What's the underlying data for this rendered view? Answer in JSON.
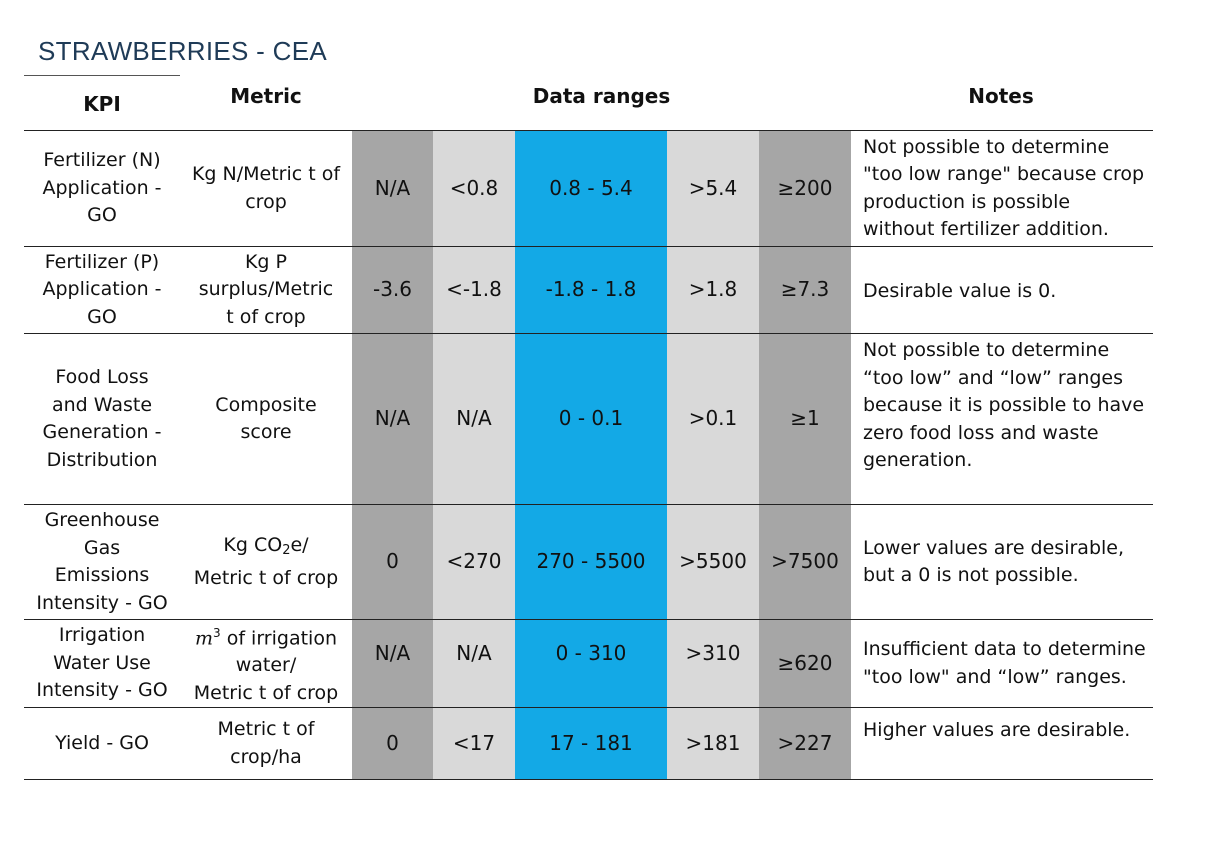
{
  "title": "STRAWBERRIES - CEA",
  "headers": {
    "kpi": "KPI",
    "metric": "Metric",
    "ranges": "Data ranges",
    "notes": "Notes"
  },
  "colors": {
    "title": "#1f3b57",
    "dark_gray": "#a6a6a6",
    "light_gray": "#d9d9d9",
    "blue": "#13a9e6"
  },
  "rows": [
    {
      "kpi": [
        "Fertilizer (N)",
        "Application -",
        "GO"
      ],
      "metric": [
        "Kg N/Metric t of",
        "crop"
      ],
      "ranges": [
        "N/A",
        "<0.8",
        "0.8 - 5.4",
        ">5.4",
        "≥200"
      ],
      "notes": [
        "Not possible to determine",
        "\"too low range\" because crop",
        "production is possible",
        "without fertilizer addition."
      ]
    },
    {
      "kpi": [
        "Fertilizer (P)",
        "Application -",
        "GO"
      ],
      "metric": [
        "Kg P",
        "surplus/Metric",
        "t of crop"
      ],
      "ranges": [
        "-3.6",
        "<-1.8",
        "-1.8 - 1.8",
        ">1.8",
        "≥7.3"
      ],
      "notes": [
        "Desirable value is 0."
      ]
    },
    {
      "kpi": [
        "Food Loss",
        "and Waste",
        "Generation -",
        "Distribution"
      ],
      "metric": [
        "Composite",
        "score"
      ],
      "ranges": [
        "N/A",
        "N/A",
        "0 - 0.1",
        ">0.1",
        "≥1"
      ],
      "notes": [
        "Not possible to determine",
        "“too low” and “low” ranges",
        "because it is possible to have",
        "zero food loss and waste",
        "generation."
      ]
    },
    {
      "kpi": [
        "Greenhouse",
        "Gas",
        "Emissions",
        "Intensity - GO"
      ],
      "metric_prefix": "Kg CO",
      "metric_sub": "2",
      "metric_suffix": "e/",
      "metric_line2": "Metric t of crop",
      "ranges": [
        "0",
        "<270",
        "270 - 5500",
        ">5500",
        ">7500"
      ],
      "notes": [
        "Lower values are desirable,",
        "but a 0 is not possible."
      ]
    },
    {
      "kpi": [
        "Irrigation",
        "Water Use",
        "Intensity - GO"
      ],
      "metric_math": "m",
      "metric_sup": "3",
      "metric_line1_rest": " of irrigation",
      "metric_line2": "water/",
      "metric_line3": "Metric t of crop",
      "ranges": [
        "N/A",
        "N/A",
        "0 - 310",
        ">310",
        "≥620"
      ],
      "notes": [
        "Insufficient data to determine",
        "\"too low\" and “low” ranges."
      ]
    },
    {
      "kpi": [
        "Yield - GO"
      ],
      "metric": [
        "Metric t of",
        "crop/ha"
      ],
      "ranges": [
        "0",
        "<17",
        "17 - 181",
        ">181",
        ">227"
      ],
      "notes": [
        "Higher values are desirable."
      ]
    }
  ]
}
